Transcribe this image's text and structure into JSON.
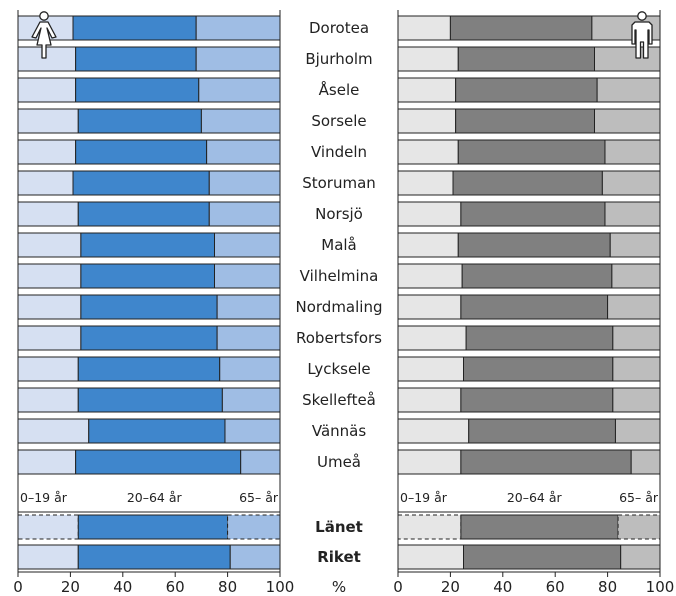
{
  "chart_data": {
    "type": "bar",
    "stacked": true,
    "orientation": "horizontal",
    "title": "",
    "xlabel": "%",
    "xlim": [
      0,
      100
    ],
    "xticks": [
      "0",
      "20",
      "40",
      "60",
      "80",
      "100"
    ],
    "age_groups": [
      "0–19 år",
      "20–64 år",
      "65– år"
    ],
    "categories": [
      "Dorotea",
      "Bjurholm",
      "Åsele",
      "Sorsele",
      "Vindeln",
      "Storuman",
      "Norsjö",
      "Malå",
      "Vilhelmina",
      "Nordmaling",
      "Robertsfors",
      "Lycksele",
      "Skellefteå",
      "Vännäs",
      "Umeå"
    ],
    "summary_categories": [
      "Länet",
      "Riket"
    ],
    "panels": [
      {
        "sex_icon": "female-icon",
        "colors": [
          "#d6e0f2",
          "#3f86cc",
          "#9fbde4"
        ],
        "values": [
          [
            21,
            47,
            32
          ],
          [
            22,
            46,
            32
          ],
          [
            22,
            47,
            31
          ],
          [
            23,
            47,
            30
          ],
          [
            22,
            50,
            28
          ],
          [
            21,
            52,
            27
          ],
          [
            23,
            50,
            27
          ],
          [
            24,
            51,
            25
          ],
          [
            24,
            51,
            25
          ],
          [
            24,
            52,
            24
          ],
          [
            24,
            52,
            24
          ],
          [
            23,
            54,
            23
          ],
          [
            23,
            55,
            22
          ],
          [
            27,
            52,
            21
          ],
          [
            22,
            63,
            15
          ]
        ],
        "summary_values": [
          [
            23,
            57,
            20
          ],
          [
            23,
            58,
            19
          ]
        ]
      },
      {
        "sex_icon": "male-icon",
        "colors": [
          "#e6e6e6",
          "#808080",
          "#bdbdbd"
        ],
        "values": [
          [
            20,
            54,
            26
          ],
          [
            23,
            52,
            25
          ],
          [
            22,
            54,
            24
          ],
          [
            22,
            53,
            25
          ],
          [
            23,
            56,
            21
          ],
          [
            21,
            57,
            22
          ],
          [
            24,
            55,
            21
          ],
          [
            23,
            58,
            19
          ],
          [
            24,
            56,
            18
          ],
          [
            24,
            56,
            20
          ],
          [
            26,
            56,
            18
          ],
          [
            25,
            57,
            18
          ],
          [
            24,
            58,
            18
          ],
          [
            27,
            56,
            17
          ],
          [
            24,
            65,
            11
          ]
        ],
        "summary_values": [
          [
            24,
            60,
            16
          ],
          [
            25,
            60,
            15
          ]
        ]
      }
    ]
  }
}
